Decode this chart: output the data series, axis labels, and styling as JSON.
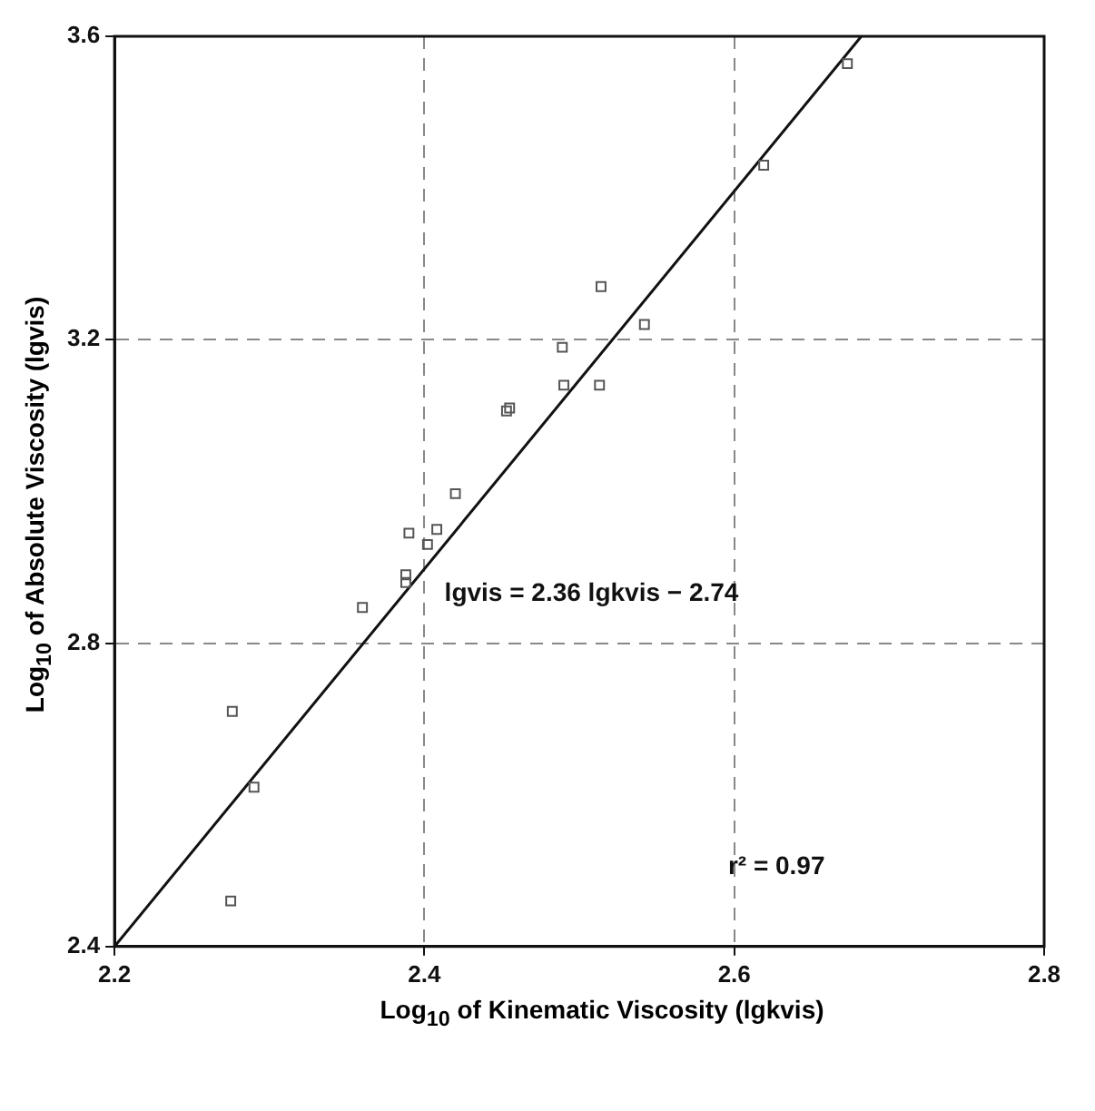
{
  "chart_data": {
    "type": "scatter",
    "xlabel": "Log$_{10}$ of Kinematic Viscosity (lgkvis)",
    "ylabel": "Log$_{10}$ of Absolute Viscosity (lgvis)",
    "xlim": [
      2.2,
      2.8
    ],
    "xticks": [
      2.2,
      2.4,
      2.6,
      2.8
    ],
    "ylim": [
      2.4,
      3.6
    ],
    "yticks": [
      2.4,
      2.8,
      3.2,
      3.6
    ],
    "grid": true,
    "marker": "square",
    "annotations": [
      "lgvis = 2.36 lgkvis − 2.74",
      "r² = 0.97"
    ],
    "series": [
      {
        "color": "#555555",
        "x": [
          2.275,
          2.276,
          2.29,
          2.36,
          2.388,
          2.388,
          2.39,
          2.402,
          2.408,
          2.42,
          2.453,
          2.455,
          2.49,
          2.513,
          2.489,
          2.514,
          2.542,
          2.619,
          2.673
        ],
        "values": [
          2.46,
          2.71,
          2.61,
          2.847,
          2.88,
          2.89,
          2.945,
          2.93,
          2.95,
          2.997,
          3.106,
          3.11,
          3.14,
          3.14,
          3.19,
          3.27,
          3.22,
          3.43,
          3.564
        ]
      },
      {
        "type": "line",
        "color": "#111111",
        "marker": "none",
        "x": [
          2.2,
          2.682
        ],
        "values": [
          2.4,
          3.6
        ]
      }
    ]
  }
}
